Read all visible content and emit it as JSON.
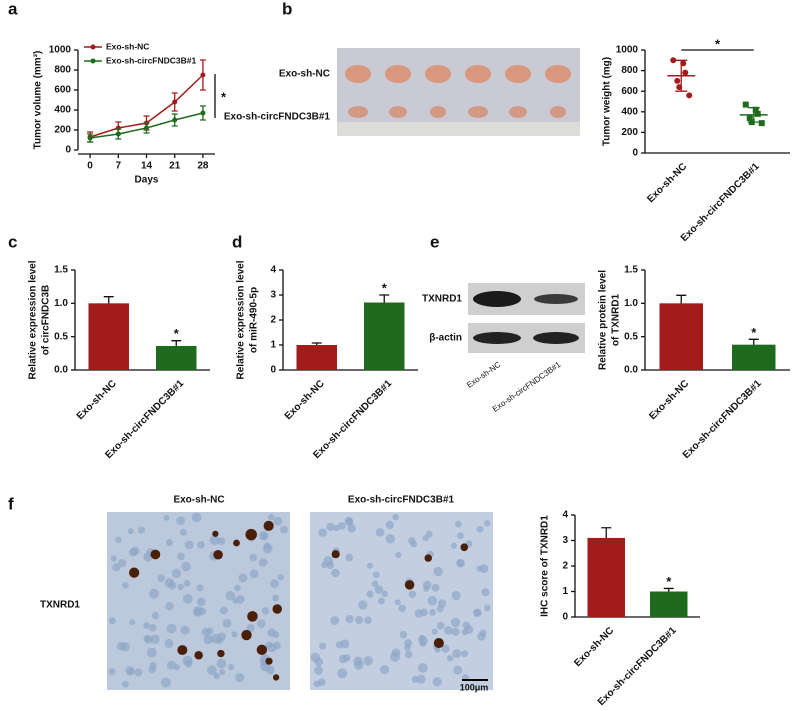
{
  "panel_labels": [
    "a",
    "b",
    "c",
    "d",
    "e",
    "f"
  ],
  "images": {
    "b": {
      "row_labels": [
        "Exo-sh-NC",
        "Exo-sh-circFNDC3B#1"
      ]
    },
    "e": {
      "row_labels": [
        "TXNRD1",
        "β-actin"
      ],
      "lane_labels": [
        "Exo-sh-NC",
        "Exo-sh-circFNDC3B#1"
      ]
    },
    "f": {
      "column_titles": [
        "Exo-sh-NC",
        "Exo-sh-circFNDC3B#1"
      ],
      "row_label": "TXNRD1",
      "scale_bar": "100μm"
    }
  },
  "chart_data": [
    {
      "type": "line",
      "xlabel": "Days",
      "ylabel": [
        "Tumor volume (mm³)"
      ],
      "x": [
        0,
        7,
        14,
        21,
        28
      ],
      "xlim": [
        -3,
        31
      ],
      "xticks": [
        0,
        7,
        14,
        21,
        28
      ],
      "ylim": [
        0,
        1000
      ],
      "yticks": [
        0,
        200,
        400,
        600,
        800,
        1000
      ],
      "annotation": "*",
      "series": [
        {
          "name": "Exo-sh-NC",
          "color": "#a31b1b",
          "values": [
            130,
            220,
            270,
            480,
            750
          ],
          "errors": [
            50,
            60,
            70,
            90,
            150
          ]
        },
        {
          "name": "Exo-sh-circFNDC3B#1",
          "color": "#1e6b1e",
          "values": [
            120,
            160,
            220,
            300,
            370
          ],
          "errors": [
            40,
            50,
            50,
            60,
            70
          ]
        }
      ]
    },
    {
      "type": "strip",
      "ylabel": [
        "Tumor weight (mg)"
      ],
      "categories": [
        "Exo-sh-NC",
        "Exo-sh-circFNDC3B#1"
      ],
      "ylim": [
        0,
        1000
      ],
      "yticks": [
        0,
        200,
        400,
        600,
        800,
        1000
      ],
      "annotation": "*",
      "series": [
        {
          "color": "#a31b1b",
          "values": [
            900,
            870,
            780,
            700,
            640,
            560
          ],
          "mean": 750,
          "sd": 150
        },
        {
          "color": "#1e6b1e",
          "values": [
            470,
            420,
            380,
            340,
            300,
            290
          ],
          "mean": 370,
          "sd": 70
        }
      ]
    },
    {
      "type": "bar",
      "ylabel": [
        "Relative expression level",
        "of circFNDC3B"
      ],
      "categories": [
        "Exo-sh-NC",
        "Exo-sh-circFNDC3B#1"
      ],
      "values": [
        1.0,
        0.36
      ],
      "errors": [
        0.1,
        0.08
      ],
      "colors": [
        "#a31b1b",
        "#1e6b1e"
      ],
      "ylim": [
        0,
        1.5
      ],
      "yticks": [
        {
          "value": 0,
          "label": "0.0"
        },
        0.5,
        {
          "value": 1,
          "label": "1.0"
        },
        1.5
      ],
      "annotation": "*"
    },
    {
      "type": "bar",
      "ylabel": [
        "Relative expression level",
        "of miR-490-5p"
      ],
      "categories": [
        "Exo-sh-NC",
        "Exo-sh-circFNDC3B#1"
      ],
      "values": [
        1.0,
        2.7
      ],
      "errors": [
        0.08,
        0.3
      ],
      "colors": [
        "#a31b1b",
        "#1e6b1e"
      ],
      "ylim": [
        0,
        4
      ],
      "yticks": [
        0,
        1,
        2,
        3,
        4
      ],
      "annotation": "*"
    },
    {
      "type": "bar",
      "ylabel": [
        "Relative protein level",
        "of TXNRD1"
      ],
      "categories": [
        "Exo-sh-NC",
        "Exo-sh-circFNDC3B#1"
      ],
      "values": [
        1.0,
        0.38
      ],
      "errors": [
        0.12,
        0.08
      ],
      "colors": [
        "#a31b1b",
        "#1e6b1e"
      ],
      "ylim": [
        0,
        1.5
      ],
      "yticks": [
        {
          "value": 0,
          "label": "0.0"
        },
        0.5,
        {
          "value": 1,
          "label": "1.0"
        },
        1.5
      ],
      "annotation": "*"
    },
    {
      "type": "bar",
      "ylabel": [
        "IHC score of TXNRD1"
      ],
      "categories": [
        "Exo-sh-NC",
        "Exo-sh-circFNDC3B#1"
      ],
      "values": [
        3.1,
        1.0
      ],
      "errors": [
        0.4,
        0.12
      ],
      "colors": [
        "#a31b1b",
        "#1e6b1e"
      ],
      "ylim": [
        0,
        4
      ],
      "yticks": [
        0,
        1,
        2,
        3,
        4
      ],
      "annotation": "*"
    }
  ]
}
